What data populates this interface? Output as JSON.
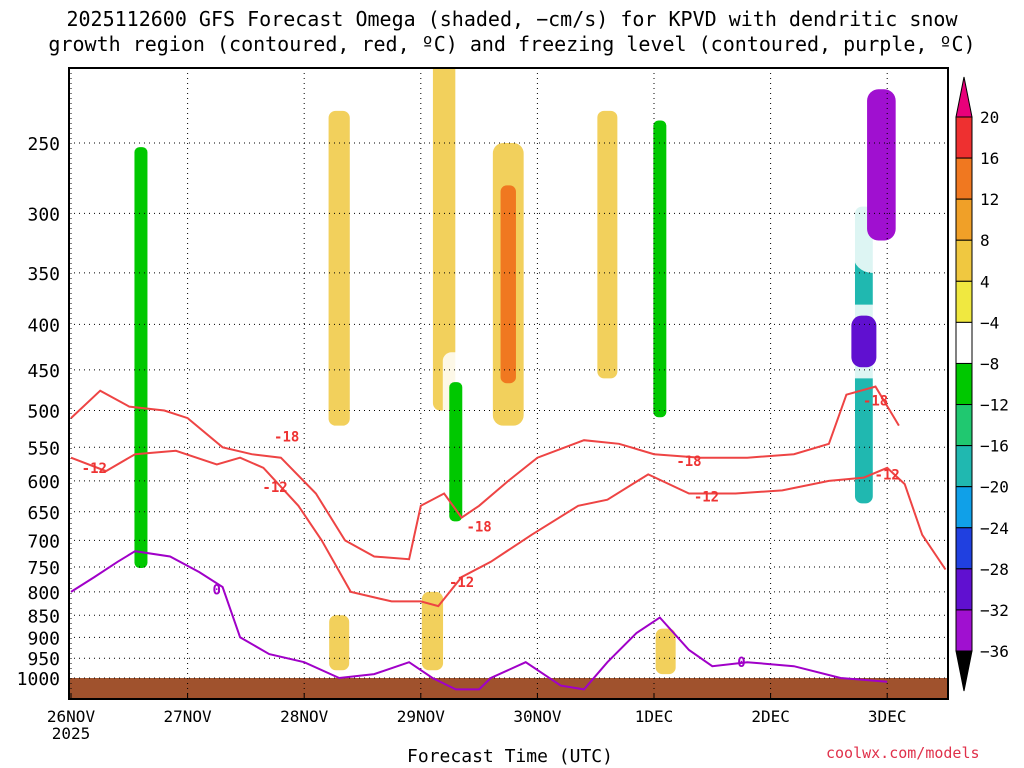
{
  "title_line1": "2025112600 GFS Forecast Omega (shaded, −cm/s) for KPVD with dendritic snow",
  "title_line2": "growth region (contoured, red, ºC) and freezing level (contoured, purple, ºC)",
  "xlabel": "Forecast Time (UTC)",
  "credit": "coolwx.com/models",
  "year_label": "2025",
  "chart_data": {
    "type": "heatmap",
    "title": "2025112600 GFS Forecast Omega (shaded, −cm/s) for KPVD with dendritic snow growth region (contoured, red, ºC) and freezing level (contoured, purple, ºC)",
    "xlabel": "Forecast Time (UTC)",
    "ylabel": "",
    "x_ticks": [
      "26NOV",
      "27NOV",
      "28NOV",
      "29NOV",
      "30NOV",
      "1DEC",
      "2DEC",
      "3DEC"
    ],
    "x_tick_sublabel": "2025",
    "x_range_days": [
      0,
      7.5
    ],
    "y_ticks": [
      250,
      300,
      350,
      400,
      450,
      500,
      550,
      600,
      650,
      700,
      750,
      800,
      850,
      900,
      950,
      1000
    ],
    "y_range_hpa": [
      200,
      1025
    ],
    "y_scale": "log-pressure",
    "grid": true,
    "colorbar": {
      "ticks": [
        "20",
        "16",
        "12",
        "8",
        "4",
        "−4",
        "−8",
        "−12",
        "−16",
        "−20",
        "−24",
        "−28",
        "−32",
        "−36"
      ],
      "colors": [
        "#e8007a",
        "#ee3030",
        "#f07820",
        "#f0a028",
        "#f0c840",
        "#f0e840",
        "#ffffff",
        "#00c800",
        "#20c870",
        "#20b8b0",
        "#10a0e8",
        "#2040e0",
        "#6010d0",
        "#a010d0",
        "#a0a0a0",
        "#000000"
      ]
    },
    "omega_features": [
      {
        "day": 0.6,
        "p_top": 200,
        "p_bottom": 950,
        "omega": -10
      },
      {
        "day": 1.1,
        "p_top": 230,
        "p_bottom": 900,
        "omega": -8
      },
      {
        "day": 1.5,
        "p_top": 250,
        "p_bottom": 700,
        "omega": -8
      },
      {
        "day": 2.3,
        "p_top": 230,
        "p_bottom": 520,
        "omega": 6
      },
      {
        "day": 3.2,
        "p_top": 200,
        "p_bottom": 500,
        "omega": 7
      },
      {
        "day": 3.75,
        "p_top": 250,
        "p_bottom": 520,
        "omega": 14
      },
      {
        "day": 3.3,
        "p_top": 430,
        "p_bottom": 720,
        "omega": -10
      },
      {
        "day": 4.6,
        "p_top": 230,
        "p_bottom": 460,
        "omega": 5
      },
      {
        "day": 5.05,
        "p_top": 200,
        "p_bottom": 600,
        "omega": -10
      },
      {
        "day": 5.6,
        "p_top": 200,
        "p_bottom": 400,
        "omega": -6
      },
      {
        "day": 6.8,
        "p_top": 250,
        "p_bottom": 750,
        "omega": -18
      },
      {
        "day": 6.95,
        "p_top": 200,
        "p_bottom": 350,
        "omega": -36
      },
      {
        "day": 6.8,
        "p_top": 380,
        "p_bottom": 460,
        "omega": -30
      },
      {
        "day": 3.1,
        "p_top": 800,
        "p_bottom": 980,
        "omega": 6
      },
      {
        "day": 2.3,
        "p_top": 850,
        "p_bottom": 980,
        "omega": 5
      },
      {
        "day": 5.1,
        "p_top": 880,
        "p_bottom": 990,
        "omega": 5
      }
    ],
    "series": [
      {
        "name": "-18",
        "color": "#ee4444",
        "x": [
          0,
          0.25,
          0.5,
          0.8,
          1.0,
          1.3,
          1.55,
          1.8,
          2.1,
          2.35,
          2.6,
          2.9,
          3.0,
          3.2,
          3.35,
          3.5,
          3.75,
          4.0,
          4.4,
          4.7,
          5.0,
          5.4,
          5.8,
          6.2,
          6.5,
          6.65,
          6.9,
          7.1
        ],
        "y": [
          510,
          475,
          495,
          500,
          510,
          550,
          560,
          565,
          620,
          700,
          730,
          735,
          640,
          620,
          660,
          640,
          600,
          565,
          540,
          545,
          560,
          565,
          565,
          560,
          545,
          480,
          470,
          520
        ]
      },
      {
        "name": "-12",
        "color": "#ee4444",
        "x": [
          0,
          0.3,
          0.55,
          0.9,
          1.25,
          1.45,
          1.65,
          1.95,
          2.15,
          2.4,
          2.75,
          3.0,
          3.15,
          3.35,
          3.6,
          3.95,
          4.35,
          4.6,
          4.95,
          5.3,
          5.7,
          6.1,
          6.5,
          6.8,
          7.0,
          7.15,
          7.3,
          7.5
        ],
        "y": [
          565,
          585,
          560,
          555,
          575,
          565,
          580,
          640,
          700,
          800,
          820,
          820,
          830,
          770,
          740,
          690,
          640,
          630,
          590,
          620,
          620,
          615,
          600,
          595,
          580,
          605,
          690,
          755
        ]
      },
      {
        "name": "0",
        "color": "#a000c8",
        "x": [
          0,
          0.2,
          0.4,
          0.55,
          0.85,
          1.1,
          1.3,
          1.45,
          1.7,
          2.0,
          2.3,
          2.6,
          2.9,
          3.1,
          3.3,
          3.5,
          3.6,
          3.9,
          4.2,
          4.4,
          4.6,
          4.85,
          5.05,
          5.3,
          5.5,
          5.8,
          6.2,
          6.6,
          7.0
        ],
        "y": [
          800,
          770,
          740,
          720,
          730,
          760,
          790,
          900,
          940,
          960,
          1000,
          990,
          960,
          1000,
          1030,
          1030,
          1000,
          960,
          1020,
          1030,
          960,
          890,
          855,
          930,
          970,
          960,
          970,
          1000,
          1010
        ]
      }
    ],
    "series_label_positions": [
      {
        "text": "-18",
        "day": 1.85,
        "p": 535
      },
      {
        "text": "-18",
        "day": 3.5,
        "p": 675
      },
      {
        "text": "-18",
        "day": 5.3,
        "p": 570
      },
      {
        "text": "-18",
        "day": 6.9,
        "p": 487
      },
      {
        "text": "-12",
        "day": 0.2,
        "p": 580
      },
      {
        "text": "-12",
        "day": 1.75,
        "p": 610
      },
      {
        "text": "-12",
        "day": 3.35,
        "p": 780
      },
      {
        "text": "-12",
        "day": 5.45,
        "p": 625
      },
      {
        "text": "-12",
        "day": 7.0,
        "p": 590
      },
      {
        "text": "0",
        "day": 1.25,
        "p": 795
      },
      {
        "text": "0",
        "day": 5.75,
        "p": 960
      }
    ]
  }
}
